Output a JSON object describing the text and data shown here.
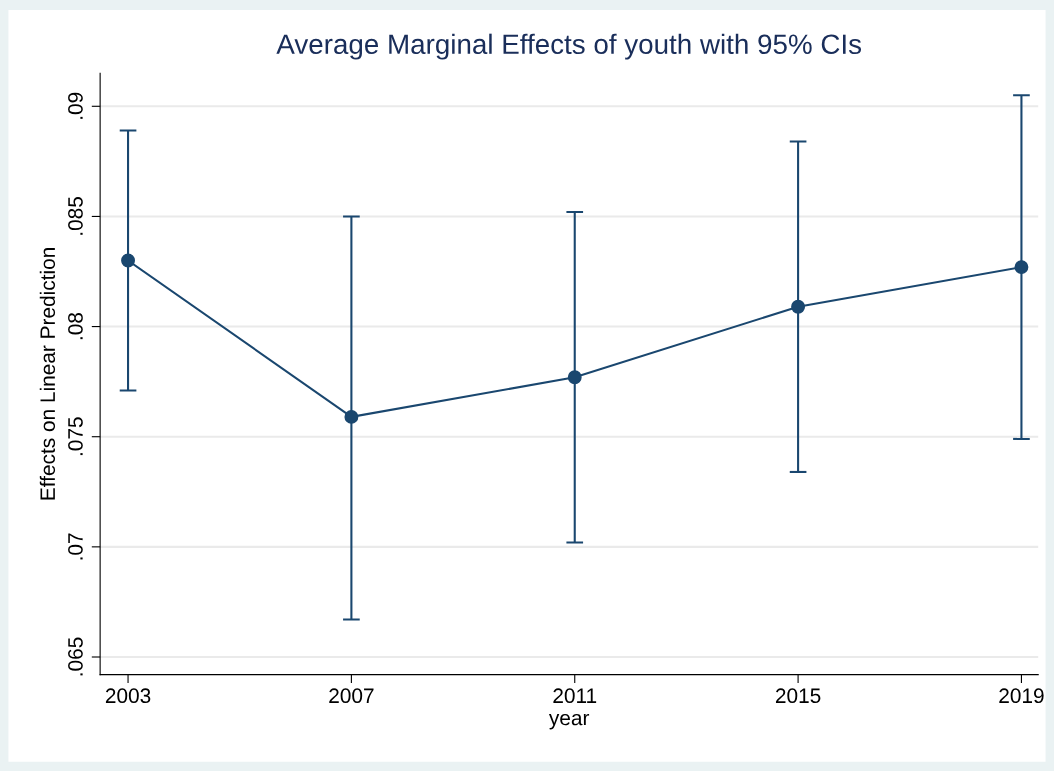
{
  "chart_data": {
    "type": "line",
    "title": "Average Marginal Effects of youth with 95% CIs",
    "xlabel": "year",
    "ylabel": "Effects on Linear Prediction",
    "x": [
      2003,
      2007,
      2011,
      2015,
      2019
    ],
    "series": [
      {
        "color": "#1a476f",
        "values": [
          0.083,
          0.0759,
          0.0777,
          0.0809,
          0.0827
        ],
        "errors": [
          [
            0.0771,
            0.0889
          ],
          [
            0.0667,
            0.085
          ],
          [
            0.0702,
            0.0852
          ],
          [
            0.0734,
            0.0884
          ],
          [
            0.0749,
            0.0905
          ]
        ]
      }
    ],
    "xlim": [
      2002.5,
      2019.3
    ],
    "xticks": [
      2003,
      2007,
      2011,
      2015,
      2019
    ],
    "ylim": [
      0.0642,
      0.0915
    ],
    "yticks": [
      {
        "value": 0.065,
        "label": ".065"
      },
      {
        "value": 0.07,
        "label": ".07"
      },
      {
        "value": 0.075,
        "label": ".075"
      },
      {
        "value": 0.08,
        "label": ".08"
      },
      {
        "value": 0.085,
        "label": ".085"
      },
      {
        "value": 0.09,
        "label": ".09"
      }
    ],
    "grid": "y",
    "marker": "circle",
    "line_style": "solid",
    "legend": false
  }
}
